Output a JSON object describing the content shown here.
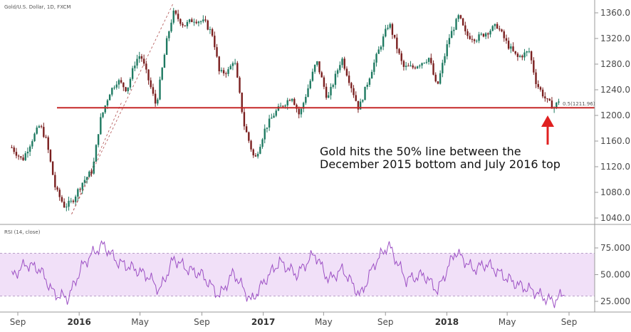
{
  "chart_data": [
    {
      "type": "candlestick",
      "title": "Gold/U.S. Dollar, 1D, FXCM",
      "ylim": [
        1030,
        1380
      ],
      "y_ticks": [
        "1360.0",
        "1320.0",
        "1280.0",
        "1240.0",
        "1200.0",
        "1160.0",
        "1120.0",
        "1080.0",
        "1040.0"
      ],
      "y_tick_values": [
        1360,
        1320,
        1280,
        1240,
        1200,
        1160,
        1120,
        1080,
        1040
      ],
      "x_tick_labels": [
        "Sep",
        "2016",
        "May",
        "Sep",
        "2017",
        "May",
        "Sep",
        "2018",
        "May",
        "Sep"
      ],
      "x_tick_bold": [
        false,
        true,
        false,
        false,
        true,
        false,
        false,
        true,
        false,
        false
      ],
      "series": [
        {
          "x": [
            "2015-08-20",
            "2015-09-10",
            "2015-10-01",
            "2015-10-15",
            "2015-10-28",
            "2015-11-15",
            "2015-12-03",
            "2015-12-17",
            "2016-01-07",
            "2016-01-28",
            "2016-02-11",
            "2016-03-01",
            "2016-03-17",
            "2016-04-05",
            "2016-04-22",
            "2016-05-02",
            "2016-05-20",
            "2016-06-02",
            "2016-06-24",
            "2016-07-06",
            "2016-07-28",
            "2016-08-15",
            "2016-09-07",
            "2016-09-23",
            "2016-10-06",
            "2016-10-25",
            "2016-11-04",
            "2016-11-24",
            "2016-12-15",
            "2017-01-05",
            "2017-01-25",
            "2017-02-27",
            "2017-03-14",
            "2017-04-17",
            "2017-05-09",
            "2017-06-06",
            "2017-07-10",
            "2017-08-04",
            "2017-09-08",
            "2017-10-06",
            "2017-10-26",
            "2017-11-27",
            "2017-12-12",
            "2018-01-05",
            "2018-01-25",
            "2018-02-08",
            "2018-03-01",
            "2018-04-11",
            "2018-05-02",
            "2018-05-21",
            "2018-06-14",
            "2018-06-28",
            "2018-07-19",
            "2018-08-03",
            "2018-08-16"
          ],
          "y": [
            1150,
            1130,
            1165,
            1185,
            1160,
            1085,
            1058,
            1065,
            1095,
            1115,
            1190,
            1235,
            1255,
            1240,
            1285,
            1295,
            1250,
            1215,
            1320,
            1360,
            1340,
            1350,
            1345,
            1325,
            1265,
            1270,
            1290,
            1185,
            1130,
            1180,
            1205,
            1230,
            1200,
            1285,
            1225,
            1290,
            1210,
            1270,
            1345,
            1275,
            1275,
            1290,
            1242,
            1320,
            1355,
            1325,
            1320,
            1340,
            1310,
            1290,
            1300,
            1250,
            1222,
            1212,
            1230
          ]
        }
      ],
      "annotations": [
        "0.5(1211.96)",
        "Gold hits the 50% line between the",
        "December 2015 bottom and July 2016 top"
      ],
      "hline": {
        "value": 1211.96,
        "color": "#c62828"
      },
      "up_color": "#1f7a62",
      "down_color": "#7a1f1f",
      "fib_color": "#b05050",
      "arrow_color": "#e02020"
    },
    {
      "type": "line",
      "title": "RSI (14, close)",
      "ylim": [
        15,
        95
      ],
      "band": [
        30,
        70
      ],
      "band_color": "#f1e0f8",
      "line_color": "#9c4fc4",
      "y_ticks": [
        "75.000",
        "50.000",
        "25.000"
      ],
      "y_tick_values": [
        75,
        50,
        25
      ],
      "series": [
        {
          "x": [
            "2015-08-20",
            "2015-09-17",
            "2015-10-15",
            "2015-11-12",
            "2015-12-10",
            "2016-01-07",
            "2016-01-28",
            "2016-02-18",
            "2016-03-17",
            "2016-04-21",
            "2016-05-19",
            "2016-06-09",
            "2016-07-07",
            "2016-08-04",
            "2016-09-01",
            "2016-10-06",
            "2016-11-03",
            "2016-12-08",
            "2017-01-05",
            "2017-02-02",
            "2017-03-09",
            "2017-04-13",
            "2017-05-11",
            "2017-06-08",
            "2017-07-13",
            "2017-08-10",
            "2017-09-07",
            "2017-10-12",
            "2017-11-16",
            "2017-12-14",
            "2018-01-18",
            "2018-02-22",
            "2018-03-22",
            "2018-04-26",
            "2018-05-24",
            "2018-06-21",
            "2018-07-19",
            "2018-08-02",
            "2018-08-23"
          ],
          "y": [
            48,
            60,
            55,
            32,
            28,
            58,
            70,
            78,
            62,
            55,
            48,
            35,
            65,
            55,
            50,
            30,
            52,
            25,
            45,
            62,
            50,
            70,
            45,
            55,
            30,
            60,
            78,
            45,
            50,
            35,
            72,
            55,
            60,
            48,
            40,
            35,
            27,
            25,
            33
          ]
        }
      ]
    }
  ]
}
